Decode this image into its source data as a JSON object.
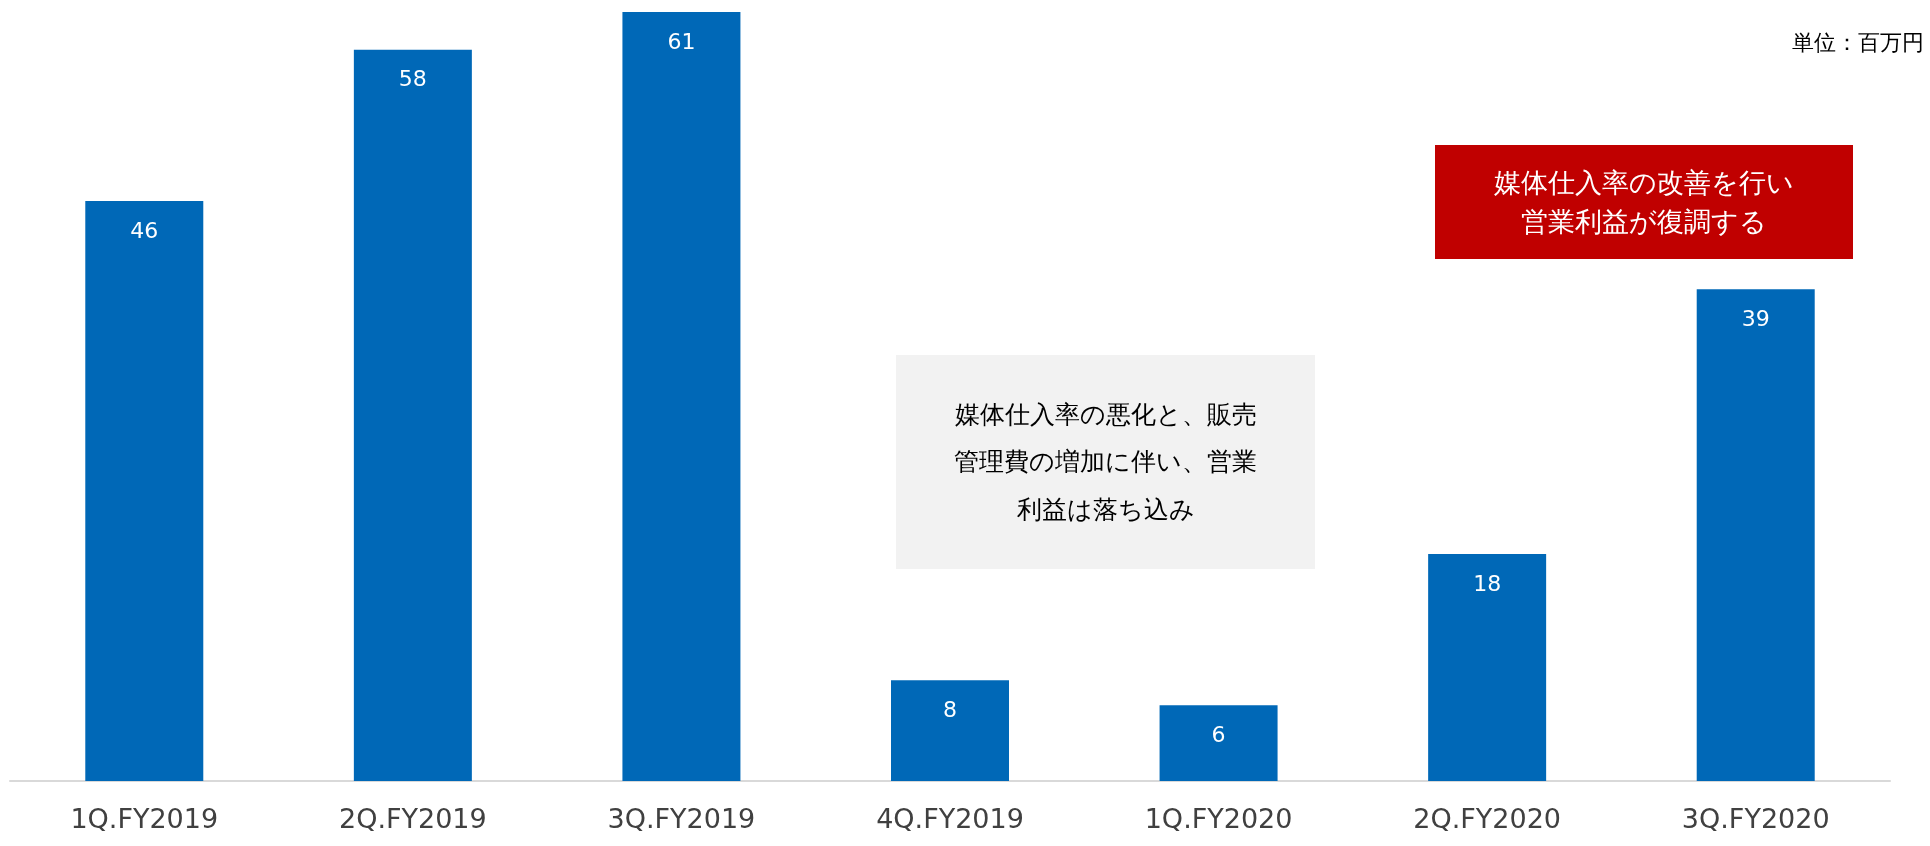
{
  "chart_data": {
    "type": "bar",
    "categories": [
      "1Q.FY2019",
      "2Q.FY2019",
      "3Q.FY2019",
      "4Q.FY2019",
      "1Q.FY2020",
      "2Q.FY2020",
      "3Q.FY2020"
    ],
    "values": [
      46,
      58,
      61,
      8,
      6,
      18,
      39
    ],
    "color": "#0068b7",
    "data_labels": true,
    "annotations": [
      "単位：百万円",
      "媒体仕入率の悪化と、販売管理費の増加に伴い、営業利益は落ち込み",
      "媒体仕入率の改善を行い営業利益が復調する"
    ]
  }
}
